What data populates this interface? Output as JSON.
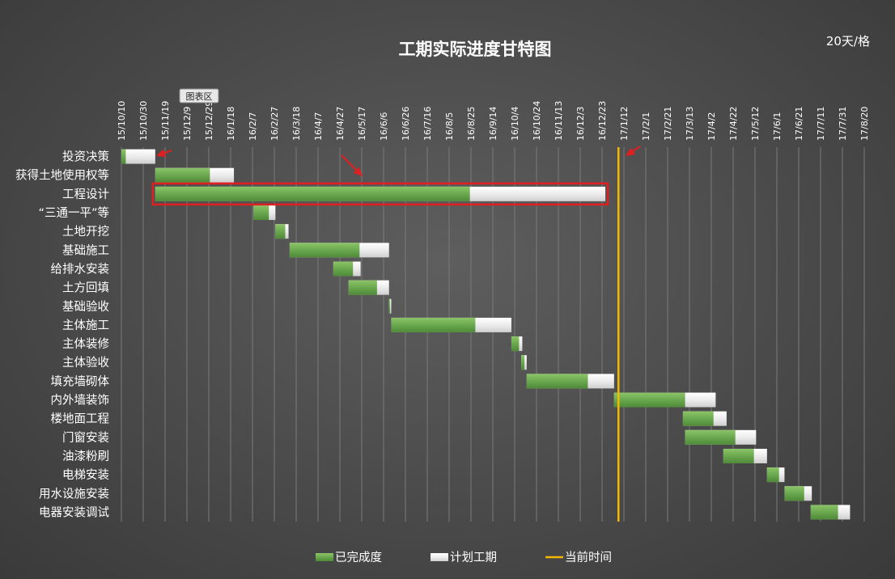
{
  "chart_data": {
    "type": "gantt",
    "title": "工期实际进度甘特图",
    "scale_label": "20天/格",
    "x_axis": {
      "start": "2015-10-10",
      "end": "2017-08-20",
      "tick_labels": [
        "15/10/10",
        "15/10/30",
        "15/11/19",
        "15/12/9",
        "15/12/29",
        "16/1/18",
        "16/2/7",
        "16/2/27",
        "16/3/18",
        "16/4/7",
        "16/4/27",
        "16/5/17",
        "16/6/6",
        "16/6/26",
        "16/7/16",
        "16/8/5",
        "16/8/25",
        "16/9/14",
        "16/10/4",
        "16/10/24",
        "16/11/13",
        "16/12/3",
        "16/12/23",
        "17/1/12",
        "17/2/1",
        "17/2/21",
        "17/3/13",
        "17/4/2",
        "17/4/22",
        "17/5/12",
        "17/6/1",
        "17/6/21",
        "17/7/11",
        "17/7/31",
        "17/8/20"
      ],
      "interval_days": 20,
      "grid": true
    },
    "current_date": "2017-01-07",
    "tasks": [
      {
        "name": "投资决策",
        "start": "2015-10-10",
        "planned_days": 31,
        "completed_days": 4
      },
      {
        "name": "获得土地使用权等",
        "start": "2015-11-10",
        "planned_days": 72,
        "completed_days": 50
      },
      {
        "name": "工程设计",
        "start": "2015-11-10",
        "planned_days": 412,
        "completed_days": 288
      },
      {
        "name": "“三通一平”等",
        "start": "2016-02-08",
        "planned_days": 20,
        "completed_days": 14
      },
      {
        "name": "土地开挖",
        "start": "2016-02-28",
        "planned_days": 12,
        "completed_days": 9
      },
      {
        "name": "基础施工",
        "start": "2016-03-12",
        "planned_days": 91,
        "completed_days": 64
      },
      {
        "name": "给排水安装",
        "start": "2016-04-21",
        "planned_days": 25,
        "completed_days": 18
      },
      {
        "name": "土方回填",
        "start": "2016-05-05",
        "planned_days": 37,
        "completed_days": 26
      },
      {
        "name": "基础验收",
        "start": "2016-06-11",
        "planned_days": 2,
        "completed_days": 1
      },
      {
        "name": "主体施工",
        "start": "2016-06-13",
        "planned_days": 110,
        "completed_days": 77
      },
      {
        "name": "主体装修",
        "start": "2016-10-01",
        "planned_days": 10,
        "completed_days": 7
      },
      {
        "name": "主体验收",
        "start": "2016-10-10",
        "planned_days": 5,
        "completed_days": 3
      },
      {
        "name": "填充墙砌体",
        "start": "2016-10-15",
        "planned_days": 80,
        "completed_days": 56
      },
      {
        "name": "内外墙装饰",
        "start": "2017-01-03",
        "planned_days": 93,
        "completed_days": 65
      },
      {
        "name": "楼地面工程",
        "start": "2017-03-07",
        "planned_days": 40,
        "completed_days": 28
      },
      {
        "name": "门窗安装",
        "start": "2017-03-09",
        "planned_days": 65,
        "completed_days": 46
      },
      {
        "name": "油漆粉刷",
        "start": "2017-04-13",
        "planned_days": 40,
        "completed_days": 28
      },
      {
        "name": "电梯安装",
        "start": "2017-05-23",
        "planned_days": 16,
        "completed_days": 11
      },
      {
        "name": "用水设施安装",
        "start": "2017-06-08",
        "planned_days": 25,
        "completed_days": 18
      },
      {
        "name": "电器安装调试",
        "start": "2017-07-02",
        "planned_days": 36,
        "completed_days": 25
      }
    ],
    "highlighted_task": "工程设计",
    "legend": {
      "position": "bottom",
      "items": [
        {
          "key": "completed",
          "label": "已完成度"
        },
        {
          "key": "planned",
          "label": "计划工期"
        },
        {
          "key": "current",
          "label": "当前时间"
        }
      ]
    },
    "colors": {
      "completed": "#6aa84f",
      "planned": "#f0f0f0",
      "current": "#f5b800",
      "highlight": "#e02020",
      "arrow": "#e02020",
      "grid": "#7a7a7a"
    }
  },
  "tooltip": {
    "label": "图表区"
  }
}
